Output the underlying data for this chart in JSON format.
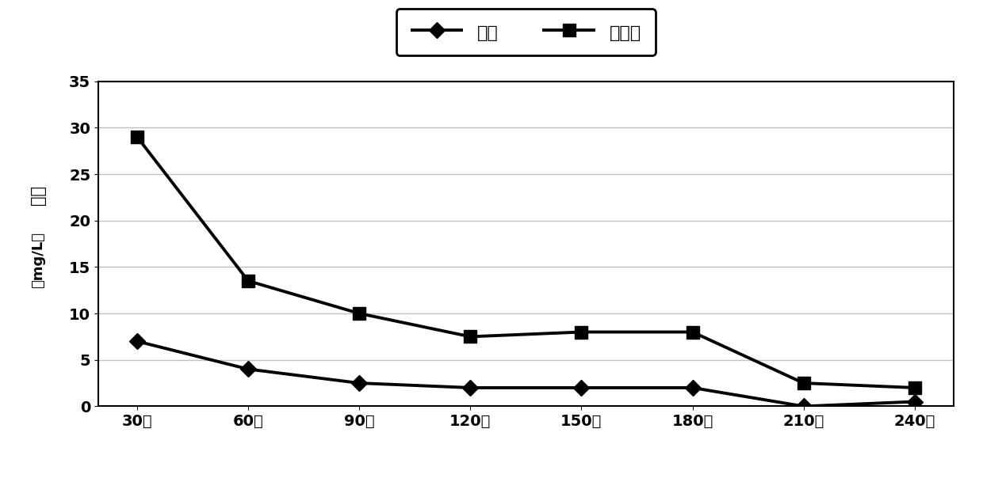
{
  "x_labels": [
    "30分",
    "60分",
    "90分",
    "120分",
    "150分",
    "180分",
    "210分",
    "240分"
  ],
  "x_values": [
    0,
    1,
    2,
    3,
    4,
    5,
    6,
    7
  ],
  "oil_values": [
    7.0,
    4.0,
    2.5,
    2.0,
    2.0,
    2.0,
    0.0,
    0.5
  ],
  "suspended_values": [
    29.0,
    13.5,
    10.0,
    7.5,
    8.0,
    8.0,
    2.5,
    2.0
  ],
  "ylabel_line1": "含量",
  "ylabel_line2": "（mg/L）",
  "ylim": [
    0,
    35
  ],
  "yticks": [
    0,
    5,
    10,
    15,
    20,
    25,
    30,
    35
  ],
  "legend_oil": "含油",
  "legend_suspended": "悬浮物",
  "line_color": "#000000",
  "bg_color": "#ffffff",
  "grid_color": "#c0c0c0"
}
